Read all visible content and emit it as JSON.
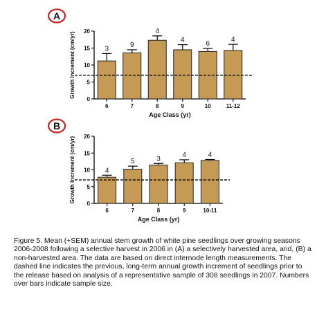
{
  "figure": {
    "caption": "Figure 5. Mean (+SEM) annual stem growth of white pine seedlings over growing seasons 2006-2008 following a selective harvest in 2006 in (A) a selectively harvested area, and, (B) a non-harvested area. The data are based on direct internode length measurements. The dashed line indicates the previous, long-term annual growth increment of seedlings prior to the release based on analysis of a representative sample of 308 seedlings in 2007. Numbers over bars indicate sample size.",
    "colors": {
      "bar": "#c49a55",
      "bar_edge": "#222222",
      "panel_circle": "#cc2222",
      "reference_line": "#000000"
    }
  },
  "chart_data": [
    {
      "type": "bar",
      "panel_label": "A",
      "categories": [
        "6",
        "7",
        "8",
        "9",
        "10",
        "11-12"
      ],
      "values": [
        11.2,
        13.6,
        17.3,
        14.5,
        14.0,
        14.3
      ],
      "errors": [
        2.2,
        0.9,
        1.3,
        1.5,
        0.9,
        1.8
      ],
      "sample_sizes": [
        "3",
        "9",
        "4",
        "4",
        "6",
        "4"
      ],
      "reference_line": 7,
      "xlabel": "Age Class (yr)",
      "ylabel": "Growth Increment (cm/yr)",
      "ylim": [
        0,
        20
      ],
      "yticks": [
        "0",
        "5",
        "10",
        "15",
        "20"
      ]
    },
    {
      "type": "bar",
      "panel_label": "B",
      "categories": [
        "6",
        "7",
        "8",
        "9",
        "10-11"
      ],
      "values": [
        7.8,
        10.2,
        11.4,
        12.1,
        12.8
      ],
      "errors": [
        0.6,
        0.9,
        0.5,
        0.9,
        0.3
      ],
      "sample_sizes": [
        "4",
        "5",
        "3",
        "4",
        "4"
      ],
      "reference_line": 7,
      "xlabel": "Age Class (yr)",
      "ylabel": "Growth Increment (cm/yr)",
      "ylim": [
        0,
        20
      ],
      "yticks": [
        "0",
        "5",
        "10",
        "15",
        "20"
      ]
    }
  ]
}
